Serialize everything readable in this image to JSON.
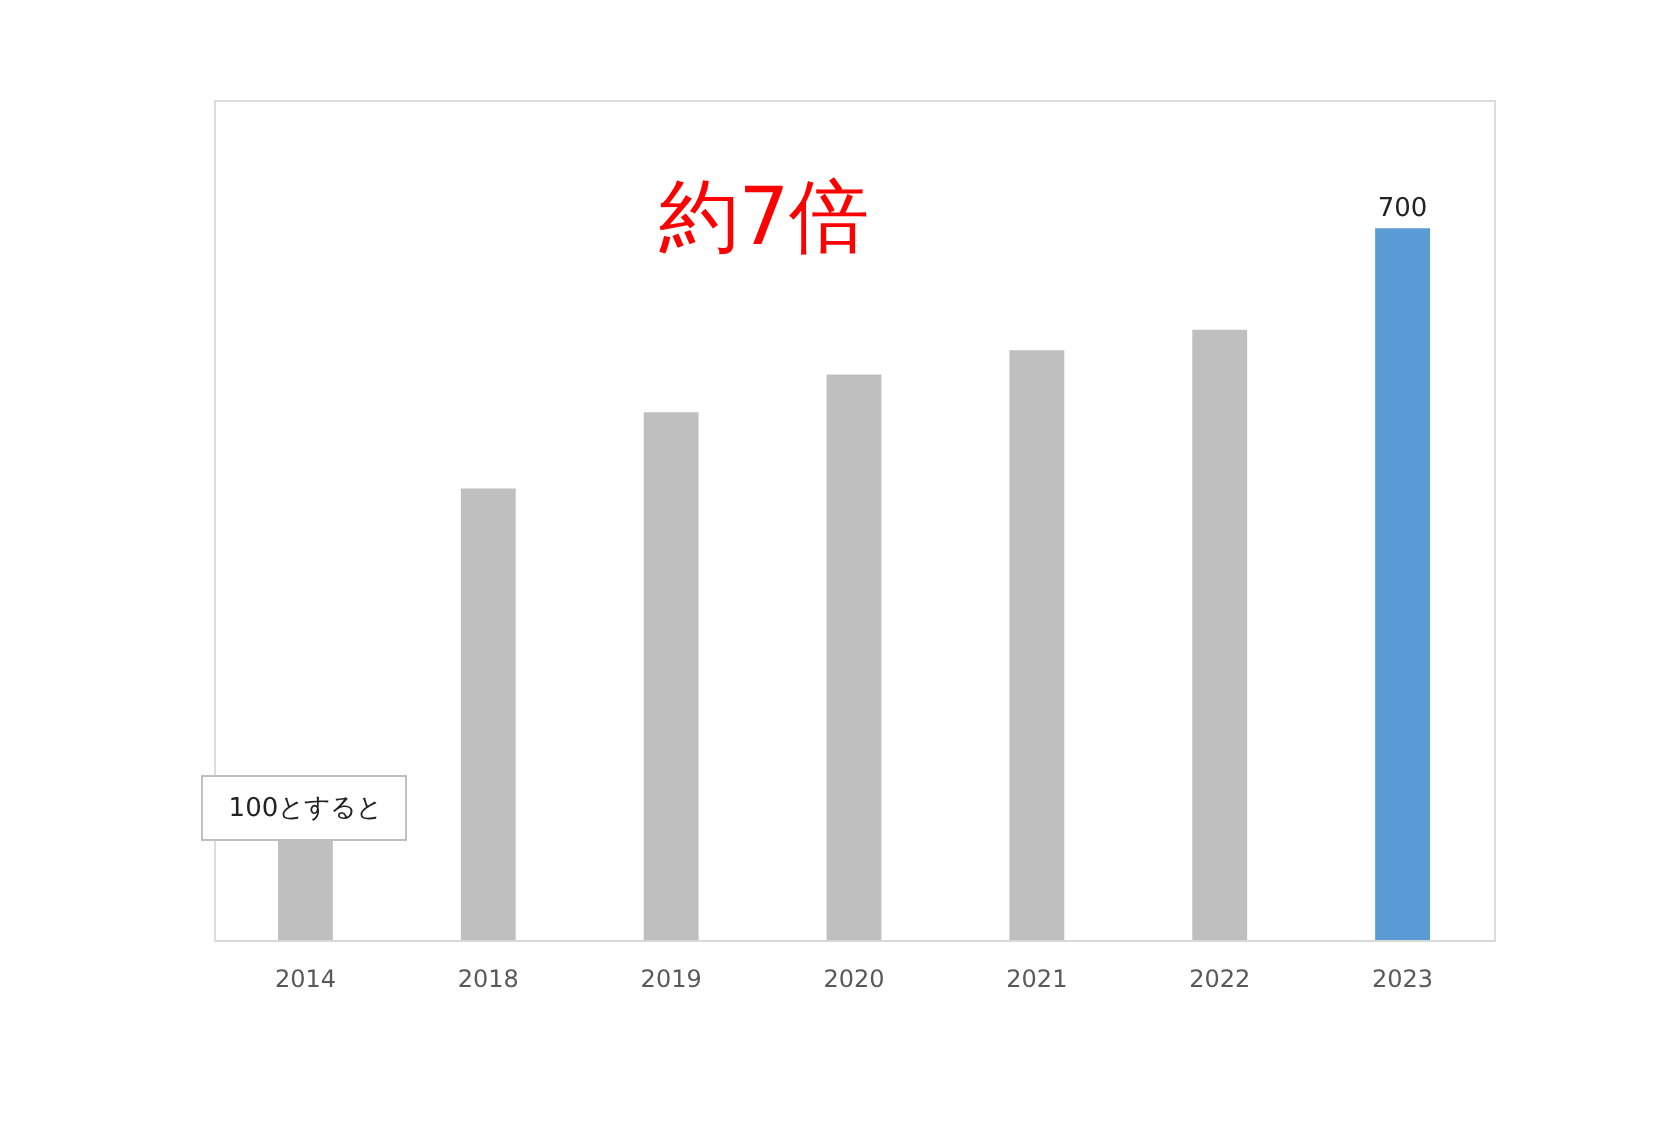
{
  "chart_data": {
    "type": "bar",
    "categories": [
      "2014",
      "2018",
      "2019",
      "2020",
      "2021",
      "2022",
      "2023"
    ],
    "values": [
      100,
      444,
      519,
      556,
      580,
      600,
      700
    ],
    "colors": [
      "#bfbfbf",
      "#bfbfbf",
      "#bfbfbf",
      "#bfbfbf",
      "#bfbfbf",
      "#bfbfbf",
      "#5b9bd5"
    ],
    "value_labels": [
      "100とすると",
      null,
      null,
      null,
      null,
      null,
      "700"
    ],
    "annotations": [
      "約7倍"
    ],
    "ylim": [
      0,
      826
    ],
    "tick_labels": "x"
  }
}
